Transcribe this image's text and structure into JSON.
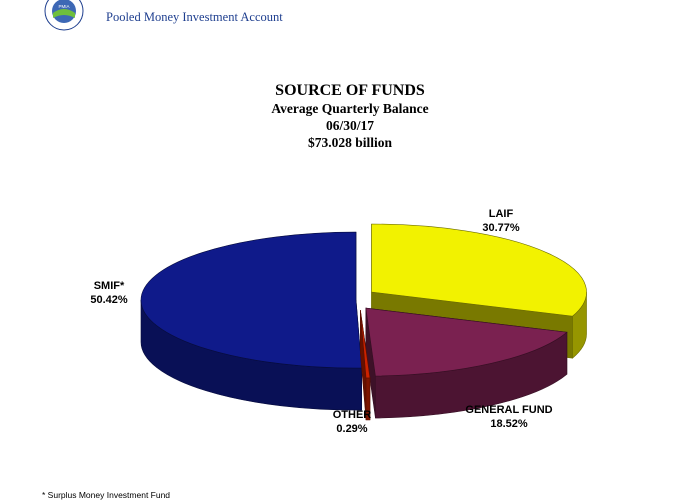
{
  "header": {
    "org_name": "Pooled Money Investment Account",
    "logo_text": "PMIA"
  },
  "chart_data": {
    "type": "pie",
    "title": "SOURCE OF FUNDS",
    "subtitle_lines": [
      "Average Quarterly Balance",
      "06/30/17",
      "$73.028 billion"
    ],
    "three_d": true,
    "exploded": true,
    "slices": [
      {
        "label": "LAIF",
        "value": 30.77,
        "value_label": "30.77%",
        "color": "#f2f200"
      },
      {
        "label": "GENERAL FUND",
        "value": 18.52,
        "value_label": "18.52%",
        "color": "#7a2150"
      },
      {
        "label": "OTHER",
        "value": 0.29,
        "value_label": "0.29%",
        "color": "#cc2200"
      },
      {
        "label": "SMIF*",
        "value": 50.42,
        "value_label": "50.42%",
        "color": "#0f1a8a"
      }
    ]
  },
  "footnote": "* Surplus Money Investment Fund"
}
